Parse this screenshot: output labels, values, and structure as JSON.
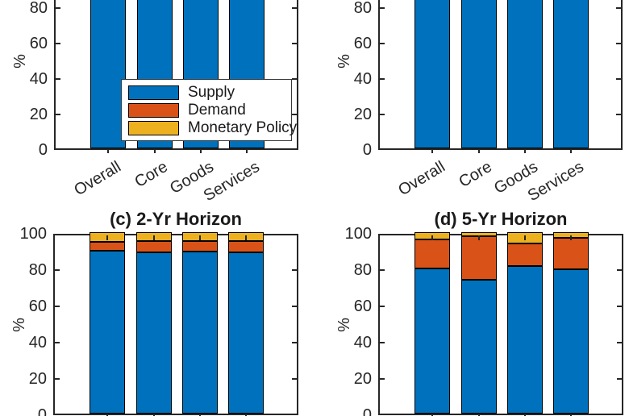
{
  "figure": {
    "background": "#ffffff",
    "ylabel": "%",
    "axis_color": "#262626",
    "colors": {
      "supply": "#0072BD",
      "demand": "#D95319",
      "monetary_policy": "#EDB120"
    },
    "legend": {
      "location": "inside panel-a",
      "entries": [
        {
          "label": "Supply",
          "color": "#0072BD"
        },
        {
          "label": "Demand",
          "color": "#D95319"
        },
        {
          "label": "Monetary Policy",
          "color": "#EDB120"
        }
      ]
    }
  },
  "chart_data": [
    {
      "id": "a",
      "panel": "top-left",
      "panel_title": "",
      "type": "bar",
      "stacked": true,
      "note": "Panel cropped at top of screenshot; only the blue Supply portion of each bar is visible (visible down from ~84% to 0%).",
      "categories": [
        "Overall",
        "Core",
        "Goods",
        "Services"
      ],
      "xticklabels_visible": true,
      "ylabel": "%",
      "ylim": [
        0,
        100
      ],
      "yticks": [
        0,
        20,
        40,
        60,
        80,
        100
      ],
      "series": [
        {
          "name": "Supply",
          "color": "#0072BD",
          "values": [
            100,
            100,
            100,
            100
          ]
        }
      ]
    },
    {
      "id": "b",
      "panel": "top-right",
      "panel_title": "",
      "type": "bar",
      "stacked": true,
      "note": "Panel cropped at top of screenshot; only the blue Supply portion of each bar is visible (visible down from ~84% to 0%).",
      "categories": [
        "Overall",
        "Core",
        "Goods",
        "Services"
      ],
      "xticklabels_visible": true,
      "ylabel": "%",
      "ylim": [
        0,
        100
      ],
      "yticks": [
        0,
        20,
        40,
        60,
        80,
        100
      ],
      "series": [
        {
          "name": "Supply",
          "color": "#0072BD",
          "values": [
            100,
            100,
            100,
            100
          ]
        }
      ]
    },
    {
      "id": "c",
      "panel": "bottom-left",
      "panel_title": "(c) 2-Yr Horizon",
      "type": "bar",
      "stacked": true,
      "note": "Bottom of panel cropped at image edge; x tick labels not visible. Values estimated from gridline positions.",
      "categories": [
        "Overall",
        "Core",
        "Goods",
        "Services"
      ],
      "xticklabels_visible": false,
      "ylabel": "%",
      "ylim": [
        0,
        100
      ],
      "yticks": [
        0,
        20,
        40,
        60,
        80,
        100
      ],
      "series": [
        {
          "name": "Supply",
          "color": "#0072BD",
          "values": [
            90,
            89,
            89.5,
            89
          ]
        },
        {
          "name": "Demand",
          "color": "#D95319",
          "values": [
            4.5,
            6,
            5.5,
            6
          ]
        },
        {
          "name": "Monetary Policy",
          "color": "#EDB120",
          "values": [
            5.5,
            5,
            5,
            5
          ]
        }
      ]
    },
    {
      "id": "d",
      "panel": "bottom-right",
      "panel_title": "(d) 5-Yr Horizon",
      "type": "bar",
      "stacked": true,
      "note": "Bottom of panel cropped at image edge; x tick labels not visible. Values estimated from gridline positions.",
      "categories": [
        "Overall",
        "Core",
        "Goods",
        "Services"
      ],
      "xticklabels_visible": false,
      "ylabel": "%",
      "ylim": [
        0,
        100
      ],
      "yticks": [
        0,
        20,
        40,
        60,
        80,
        100
      ],
      "series": [
        {
          "name": "Supply",
          "color": "#0072BD",
          "values": [
            80,
            74,
            81.5,
            79.5
          ]
        },
        {
          "name": "Demand",
          "color": "#D95319",
          "values": [
            16,
            24,
            12.5,
            17.5
          ]
        },
        {
          "name": "Monetary Policy",
          "color": "#EDB120",
          "values": [
            4,
            2,
            6,
            3
          ]
        }
      ]
    }
  ]
}
